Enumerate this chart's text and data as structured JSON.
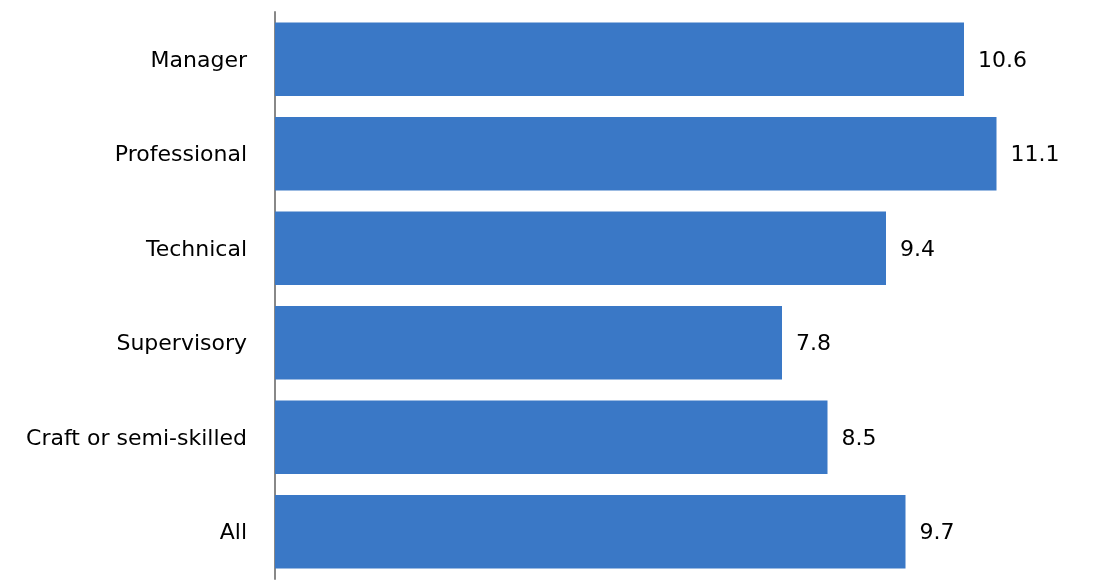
{
  "chart_data": {
    "type": "bar",
    "orientation": "horizontal",
    "categories": [
      "Manager",
      "Professional",
      "Technical",
      "Supervisory",
      "Craft or semi-skilled",
      "All"
    ],
    "values": [
      10.6,
      11.1,
      9.4,
      7.8,
      8.5,
      9.7
    ],
    "color": "#3a78c6",
    "data_labels": true,
    "tick_labels": "y"
  }
}
